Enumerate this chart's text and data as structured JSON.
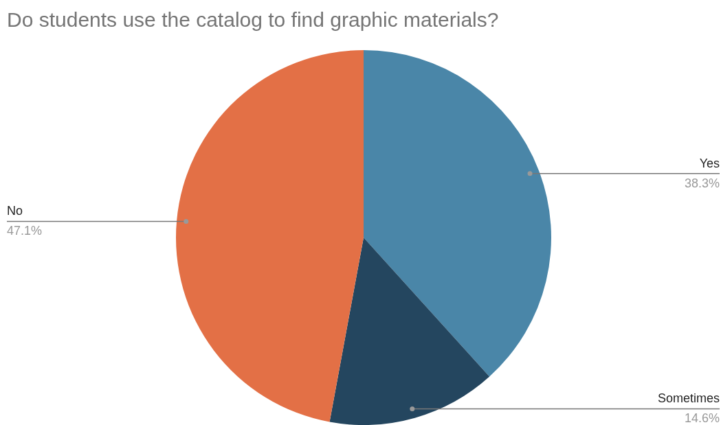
{
  "chart_data": {
    "type": "pie",
    "title": "Do students use the catalog to find graphic materials?",
    "categories": [
      "Yes",
      "Sometimes",
      "No"
    ],
    "values": [
      38.3,
      14.6,
      47.1
    ],
    "colors": [
      "#4a86a8",
      "#24465f",
      "#e37046"
    ],
    "value_labels": [
      "38.3%",
      "14.6%",
      "47.1%"
    ],
    "legend": false
  }
}
